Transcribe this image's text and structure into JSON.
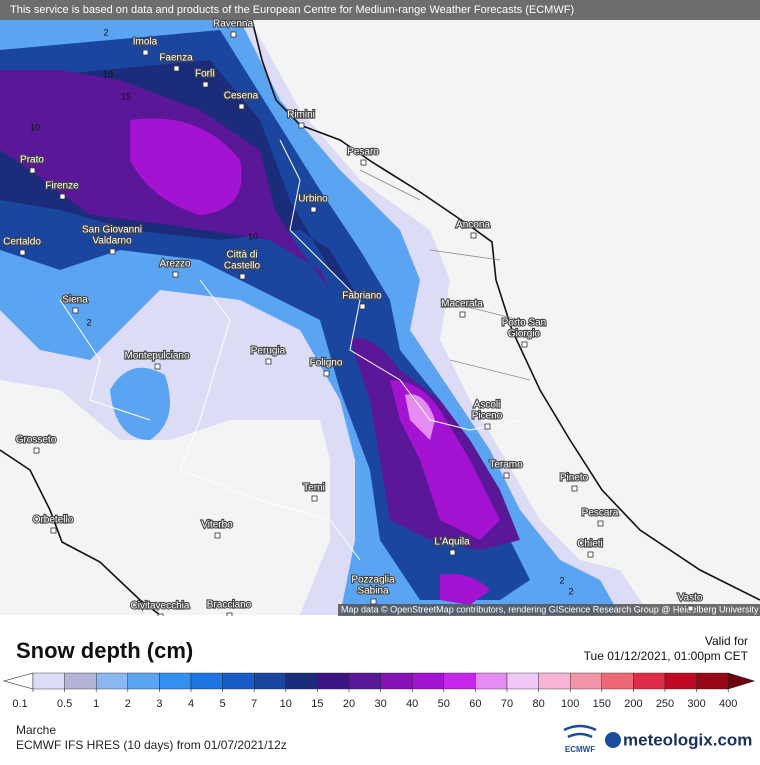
{
  "header": {
    "notice": "This service is based on data and products of the European Centre for Medium-range Weather Forecasts (ECMWF)"
  },
  "map": {
    "attribution": "Map data © OpenStreetMap contributors, rendering GIScience Research Group @ Heidelberg University",
    "cities": [
      [
        "Ravenna"
      ],
      [
        "Imola"
      ],
      [
        "Faenza"
      ],
      [
        "Forlì"
      ],
      [
        "Cesena"
      ],
      [
        "Rimini"
      ],
      [
        "Pesaro"
      ],
      [
        "Prato"
      ],
      [
        "Firenze"
      ],
      [
        "Urbino"
      ],
      [
        "Ancona"
      ],
      [
        "San Giovanni",
        "Valdarno"
      ],
      [
        "Certaldo"
      ],
      [
        "Arezzo"
      ],
      [
        "Città di",
        "Castello"
      ],
      [
        "Fabriano"
      ],
      [
        "Siena"
      ],
      [
        "Macerata"
      ],
      [
        "Porto San",
        "Giorgio"
      ],
      [
        "Montepulciano"
      ],
      [
        "Perugia"
      ],
      [
        "Foligno"
      ],
      [
        "Ascoli",
        "Piceno"
      ],
      [
        "Grosseto"
      ],
      [
        "Teramo"
      ],
      [
        "Pineto"
      ],
      [
        "Terni"
      ],
      [
        "Pescara"
      ],
      [
        "Orbetello"
      ],
      [
        "Viterbo"
      ],
      [
        "L'Aquila"
      ],
      [
        "Chieti"
      ],
      [
        "Pozzaglia",
        "Sabina"
      ],
      [
        "Vasto"
      ],
      [
        "Civitavecchia"
      ],
      [
        "Bracciano"
      ]
    ],
    "contour_labels": [
      2,
      10,
      15,
      10,
      10,
      2,
      2,
      2
    ]
  },
  "legend": {
    "title": "Snow depth (cm)",
    "ticks": [
      0.1,
      0.5,
      1,
      2,
      3,
      4,
      5,
      7,
      10,
      15,
      20,
      30,
      40,
      50,
      60,
      70,
      80,
      100,
      150,
      200,
      250,
      300,
      400
    ],
    "colors": [
      "#dcdcf6",
      "#b4b4d8",
      "#8cb8f2",
      "#5aa4f2",
      "#3290f0",
      "#1e74e0",
      "#1a5cc6",
      "#1a46a0",
      "#1b2c7a",
      "#3c1486",
      "#5a1898",
      "#8412b4",
      "#a412d2",
      "#c626ea",
      "#e48cf2",
      "#f2c8f8",
      "#f8b4d4",
      "#f096a8",
      "#f06878",
      "#e02c48",
      "#c00a24",
      "#980616",
      "#6e0410"
    ],
    "valid_label": "Valid for",
    "valid_time": "Tue 01/12/2021, 01:00pm CET",
    "region": "Marche",
    "model_run": "ECMWF IFS HRES (10 days) from 01/07/2021/12z",
    "agency": "ECMWF",
    "brand": "meteologix.com"
  }
}
